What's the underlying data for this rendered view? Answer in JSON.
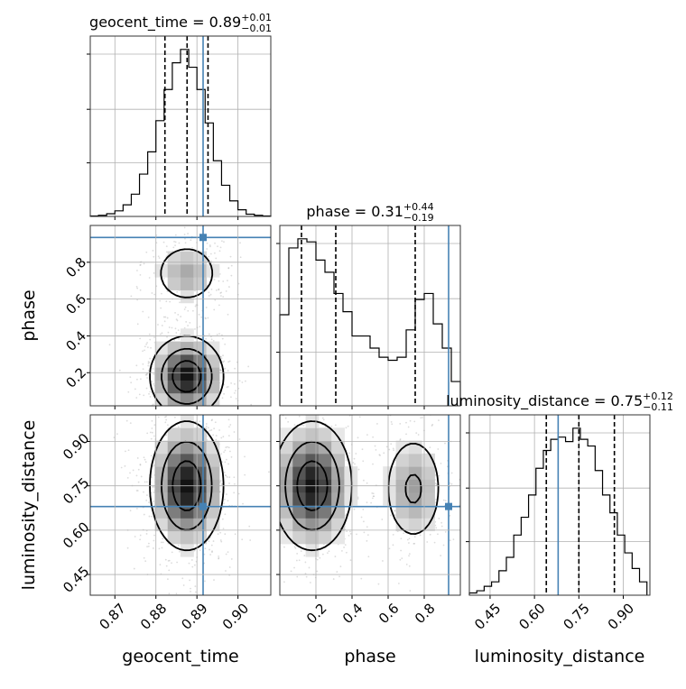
{
  "chart_data": [
    {
      "type": "histogram",
      "panel": "geocent_time",
      "title": {
        "text": "geocent_time = 0.89",
        "sup": "+0.01",
        "sub": "−0.01"
      },
      "xlim": [
        0.864,
        0.908
      ],
      "bins": [
        0.864,
        0.866,
        0.868,
        0.87,
        0.872,
        0.874,
        0.876,
        0.878,
        0.88,
        0.882,
        0.884,
        0.886,
        0.888,
        0.89,
        0.892,
        0.894,
        0.896,
        0.898,
        0.9,
        0.902,
        0.904,
        0.906,
        0.908
      ],
      "counts": [
        0.2,
        0.5,
        1.2,
        2.5,
        5.2,
        10,
        19,
        29,
        43,
        57,
        69,
        75,
        67,
        57,
        42,
        25,
        14,
        7,
        3,
        1,
        0.5,
        0.2
      ],
      "quantiles": [
        0.8822,
        0.8876,
        0.8927
      ],
      "truth": 0.8915,
      "grid": true
    },
    {
      "type": "histogram",
      "panel": "phase",
      "title": {
        "text": "phase = 0.31",
        "sup": "+0.44",
        "sub": "−0.19"
      },
      "xlim": [
        0.0,
        1.0
      ],
      "bins": [
        0.0,
        0.05,
        0.1,
        0.15,
        0.2,
        0.25,
        0.3,
        0.35,
        0.4,
        0.45,
        0.5,
        0.55,
        0.6,
        0.65,
        0.7,
        0.75,
        0.8,
        0.85,
        0.9,
        0.95,
        1.0
      ],
      "counts": [
        30,
        52,
        55,
        54,
        48,
        44,
        37,
        31,
        23,
        23,
        19,
        16,
        15,
        16,
        25,
        35,
        37,
        27,
        19,
        8
      ],
      "quantiles": [
        0.12,
        0.31,
        0.75
      ],
      "truth": 0.935,
      "grid": true
    },
    {
      "type": "histogram",
      "panel": "luminosity_distance",
      "title": {
        "text": "luminosity_distance = 0.75",
        "sup": "+0.12",
        "sub": "−0.11"
      },
      "xlim": [
        0.38,
        0.99
      ],
      "xticks": [
        "0.45",
        "0.60",
        "0.75",
        "0.90"
      ],
      "xlabel": "luminosity_distance",
      "bins": [
        0.38,
        0.405,
        0.43,
        0.455,
        0.48,
        0.505,
        0.53,
        0.555,
        0.58,
        0.605,
        0.63,
        0.655,
        0.68,
        0.705,
        0.73,
        0.755,
        0.78,
        0.805,
        0.83,
        0.855,
        0.88,
        0.905,
        0.93,
        0.955,
        0.98
      ],
      "counts": [
        1,
        2,
        4,
        6,
        11,
        17,
        27,
        35,
        45,
        57,
        65,
        70,
        71,
        69,
        75,
        70,
        67,
        56,
        45,
        37,
        27,
        19,
        12,
        6
      ],
      "quantiles": [
        0.64,
        0.75,
        0.87
      ],
      "truth": 0.68,
      "grid": true
    },
    {
      "type": "contour",
      "panel": "geocent_time vs phase",
      "x": "geocent_time",
      "y": "phase",
      "xlim": [
        0.864,
        0.908
      ],
      "ylim": [
        0.02,
        1.0
      ],
      "yticks": [
        "0.2",
        "0.4",
        "0.6",
        "0.8"
      ],
      "ylabel": "phase",
      "modes": [
        {
          "x": 0.8875,
          "y": 0.18,
          "sx": 0.0045,
          "sy": 0.11,
          "w": 1.0
        },
        {
          "x": 0.8875,
          "y": 0.74,
          "sx": 0.0043,
          "sy": 0.09,
          "w": 0.4
        }
      ],
      "truth": [
        0.8915,
        0.935
      ]
    },
    {
      "type": "contour",
      "panel": "geocent_time vs luminosity_distance",
      "x": "geocent_time",
      "y": "luminosity_distance",
      "xlim": [
        0.864,
        0.908
      ],
      "ylim": [
        0.38,
        0.99
      ],
      "xticks": [
        "0.87",
        "0.88",
        "0.89",
        "0.90"
      ],
      "yticks": [
        "0.45",
        "0.60",
        "0.75",
        "0.90"
      ],
      "xlabel": "geocent_time",
      "ylabel": "luminosity_distance",
      "modes": [
        {
          "x": 0.8875,
          "y": 0.75,
          "sx": 0.0045,
          "sy": 0.11,
          "w": 1.0
        }
      ],
      "truth": [
        0.8915,
        0.68
      ]
    },
    {
      "type": "contour",
      "panel": "phase vs luminosity_distance",
      "x": "phase",
      "y": "luminosity_distance",
      "xlim": [
        0.0,
        1.0
      ],
      "ylim": [
        0.38,
        0.99
      ],
      "xticks": [
        "0.2",
        "0.4",
        "0.6",
        "0.8"
      ],
      "xlabel": "phase",
      "modes": [
        {
          "x": 0.18,
          "y": 0.75,
          "sx": 0.11,
          "sy": 0.11,
          "w": 1.0
        },
        {
          "x": 0.74,
          "y": 0.74,
          "sx": 0.09,
          "sy": 0.1,
          "w": 0.45
        }
      ],
      "truth": [
        0.935,
        0.68
      ]
    }
  ],
  "colors": {
    "truth": "#4682b4",
    "line": "#000000",
    "grid": "#b0b0b0"
  }
}
